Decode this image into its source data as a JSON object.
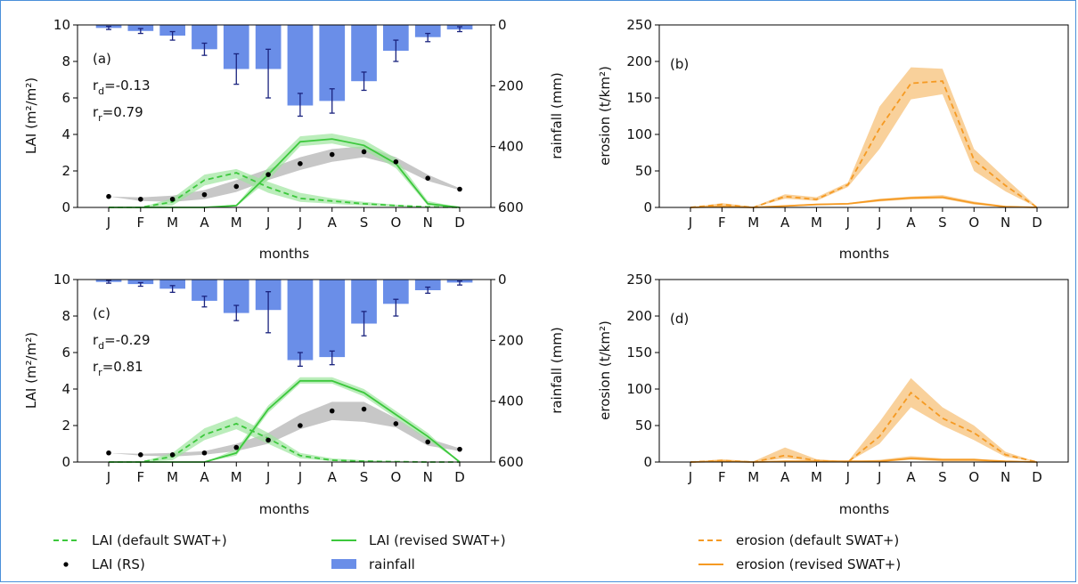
{
  "months": [
    "J",
    "F",
    "M",
    "A",
    "M",
    "J",
    "J",
    "A",
    "S",
    "O",
    "N",
    "D"
  ],
  "legend": {
    "lai_default": "LAI (default SWAT+)",
    "lai_revised": "LAI (revised SWAT+)",
    "lai_rs": "LAI (RS)",
    "rainfall": "rainfall",
    "erosion_default": "erosion (default SWAT+)",
    "erosion_revised": "erosion (revised SWAT+)"
  },
  "colors": {
    "rainfall": "#6a8ee8",
    "errorbar": "#1a237e",
    "lai_line": "#3cc83c",
    "lai_band": "#9ee69e",
    "rs_band": "#bdbdbd",
    "erosion": "#f59a23",
    "erosion_band": "#f8c98a"
  },
  "chart_data": [
    {
      "id": "a",
      "type": "line+bar",
      "panel_label": "(a)",
      "stat_d": {
        "base": "r",
        "sub": "d",
        "value": "=-0.13"
      },
      "stat_r": {
        "base": "r",
        "sub": "r",
        "value": "=0.79"
      },
      "xlabel": "months",
      "ylabel": "LAI (m²/m²)",
      "y2label": "rainfall (mm)",
      "ylim": [
        0,
        10
      ],
      "y2lim": [
        0,
        600
      ],
      "yticks": [
        "0",
        "2",
        "4",
        "6",
        "8",
        "10"
      ],
      "y2ticks": [
        "0",
        "200",
        "400",
        "600"
      ],
      "rainfall": [
        10,
        20,
        35,
        80,
        145,
        145,
        265,
        250,
        185,
        85,
        40,
        15
      ],
      "rainfall_err": [
        [
          5,
          15
        ],
        [
          12,
          28
        ],
        [
          22,
          50
        ],
        [
          60,
          100
        ],
        [
          95,
          195
        ],
        [
          80,
          240
        ],
        [
          225,
          300
        ],
        [
          210,
          290
        ],
        [
          155,
          215
        ],
        [
          50,
          120
        ],
        [
          28,
          55
        ],
        [
          6,
          22
        ]
      ],
      "lai_default": [
        0,
        0,
        0.3,
        1.5,
        1.9,
        1.1,
        0.5,
        0.35,
        0.2,
        0.1,
        0.03,
        0
      ],
      "lai_default_band": [
        [
          0,
          0
        ],
        [
          0,
          0
        ],
        [
          0.1,
          0.5
        ],
        [
          1.2,
          1.8
        ],
        [
          1.6,
          2.1
        ],
        [
          0.8,
          1.4
        ],
        [
          0.3,
          0.8
        ],
        [
          0.2,
          0.5
        ],
        [
          0.1,
          0.3
        ],
        [
          0.05,
          0.15
        ],
        [
          0.01,
          0.05
        ],
        [
          0,
          0
        ]
      ],
      "lai_revised": [
        0,
        0,
        0,
        0,
        0.1,
        1.8,
        3.6,
        3.75,
        3.4,
        2.4,
        0.2,
        0
      ],
      "lai_revised_band": [
        [
          0,
          0
        ],
        [
          0,
          0
        ],
        [
          0,
          0
        ],
        [
          0,
          0
        ],
        [
          0.05,
          0.15
        ],
        [
          1.5,
          2.2
        ],
        [
          3.35,
          3.9
        ],
        [
          3.5,
          4.05
        ],
        [
          3.15,
          3.7
        ],
        [
          2.15,
          2.7
        ],
        [
          0.1,
          0.35
        ],
        [
          0,
          0
        ]
      ],
      "lai_rs": [
        0.6,
        0.45,
        0.45,
        0.7,
        1.15,
        1.8,
        2.4,
        2.9,
        3.05,
        2.5,
        1.6,
        1.0
      ],
      "lai_rs_band": [
        [
          0.6,
          0.6
        ],
        [
          0.35,
          0.55
        ],
        [
          0.3,
          0.65
        ],
        [
          0.45,
          0.95
        ],
        [
          0.85,
          1.5
        ],
        [
          1.5,
          2.1
        ],
        [
          2.05,
          2.75
        ],
        [
          2.5,
          3.2
        ],
        [
          2.75,
          3.35
        ],
        [
          2.3,
          2.75
        ],
        [
          1.45,
          1.8
        ],
        [
          0.95,
          1.05
        ]
      ]
    },
    {
      "id": "b",
      "type": "line",
      "panel_label": "(b)",
      "xlabel": "months",
      "ylabel": "erosion (t/km²)",
      "ylim": [
        0,
        250
      ],
      "yticks": [
        "0",
        "50",
        "100",
        "150",
        "200",
        "250"
      ],
      "erosion_default": [
        0,
        4,
        0,
        15,
        11,
        31,
        108,
        170,
        173,
        65,
        30,
        0
      ],
      "erosion_default_band": [
        [
          0,
          0
        ],
        [
          2,
          6
        ],
        [
          0,
          1
        ],
        [
          12,
          18
        ],
        [
          9,
          14
        ],
        [
          28,
          34
        ],
        [
          80,
          138
        ],
        [
          148,
          192
        ],
        [
          155,
          190
        ],
        [
          50,
          80
        ],
        [
          22,
          40
        ],
        [
          0,
          1
        ]
      ],
      "erosion_revised": [
        0,
        1,
        0,
        2,
        4,
        5,
        10,
        13,
        14,
        6,
        1,
        0
      ],
      "erosion_revised_band": [
        [
          0,
          0
        ],
        [
          0,
          2
        ],
        [
          0,
          0
        ],
        [
          1,
          3
        ],
        [
          3,
          5
        ],
        [
          4,
          6
        ],
        [
          8,
          12
        ],
        [
          11,
          15
        ],
        [
          12,
          17
        ],
        [
          4,
          8
        ],
        [
          0,
          2
        ],
        [
          0,
          0
        ]
      ]
    },
    {
      "id": "c",
      "type": "line+bar",
      "panel_label": "(c)",
      "stat_d": {
        "base": "r",
        "sub": "d",
        "value": "=-0.29"
      },
      "stat_r": {
        "base": "r",
        "sub": "r",
        "value": "=0.81"
      },
      "xlabel": "months",
      "ylabel": "LAI (m²/m²)",
      "y2label": "rainfall (mm)",
      "ylim": [
        0,
        10
      ],
      "y2lim": [
        0,
        600
      ],
      "yticks": [
        "0",
        "2",
        "4",
        "6",
        "8",
        "10"
      ],
      "y2ticks": [
        "0",
        "200",
        "400",
        "600"
      ],
      "rainfall": [
        8,
        15,
        30,
        70,
        110,
        100,
        265,
        255,
        145,
        80,
        35,
        10
      ],
      "rainfall_err": [
        [
          3,
          12
        ],
        [
          10,
          22
        ],
        [
          20,
          42
        ],
        [
          55,
          90
        ],
        [
          85,
          135
        ],
        [
          40,
          175
        ],
        [
          240,
          285
        ],
        [
          235,
          280
        ],
        [
          105,
          185
        ],
        [
          65,
          120
        ],
        [
          25,
          45
        ],
        [
          5,
          18
        ]
      ],
      "lai_default": [
        0,
        0,
        0.3,
        1.5,
        2.1,
        1.3,
        0.35,
        0.1,
        0.05,
        0.02,
        0,
        0
      ],
      "lai_default_band": [
        [
          0,
          0
        ],
        [
          0,
          0
        ],
        [
          0.1,
          0.5
        ],
        [
          1.2,
          1.85
        ],
        [
          1.8,
          2.5
        ],
        [
          1.0,
          1.6
        ],
        [
          0.2,
          0.5
        ],
        [
          0.05,
          0.2
        ],
        [
          0.02,
          0.1
        ],
        [
          0,
          0.05
        ],
        [
          0,
          0
        ],
        [
          0,
          0
        ]
      ],
      "lai_revised": [
        0,
        0,
        0,
        0,
        0.5,
        2.9,
        4.45,
        4.45,
        3.8,
        2.6,
        1.4,
        0
      ],
      "lai_revised_band": [
        [
          0,
          0
        ],
        [
          0,
          0
        ],
        [
          0,
          0
        ],
        [
          0,
          0
        ],
        [
          0.35,
          0.7
        ],
        [
          2.7,
          3.1
        ],
        [
          4.3,
          4.65
        ],
        [
          4.3,
          4.65
        ],
        [
          3.6,
          4.0
        ],
        [
          2.4,
          2.8
        ],
        [
          1.2,
          1.6
        ],
        [
          0,
          0
        ]
      ],
      "lai_rs": [
        0.5,
        0.4,
        0.4,
        0.5,
        0.8,
        1.2,
        2.0,
        2.8,
        2.9,
        2.1,
        1.1,
        0.7
      ],
      "lai_rs_band": [
        [
          0.5,
          0.5
        ],
        [
          0.35,
          0.45
        ],
        [
          0.3,
          0.5
        ],
        [
          0.4,
          0.6
        ],
        [
          0.6,
          1.0
        ],
        [
          1.0,
          1.6
        ],
        [
          1.8,
          2.6
        ],
        [
          2.3,
          3.3
        ],
        [
          2.2,
          3.3
        ],
        [
          1.9,
          2.4
        ],
        [
          0.9,
          1.3
        ],
        [
          0.6,
          0.75
        ]
      ]
    },
    {
      "id": "d",
      "type": "line",
      "panel_label": "(d)",
      "xlabel": "months",
      "ylabel": "erosion (t/km²)",
      "ylim": [
        0,
        250
      ],
      "yticks": [
        "0",
        "50",
        "100",
        "150",
        "200",
        "250"
      ],
      "erosion_default": [
        0,
        2,
        0,
        9,
        2,
        0,
        35,
        95,
        60,
        40,
        10,
        0
      ],
      "erosion_default_band": [
        [
          0,
          0
        ],
        [
          1,
          4
        ],
        [
          0,
          1
        ],
        [
          5,
          20
        ],
        [
          1,
          4
        ],
        [
          0,
          1
        ],
        [
          25,
          55
        ],
        [
          75,
          115
        ],
        [
          50,
          75
        ],
        [
          30,
          50
        ],
        [
          7,
          14
        ],
        [
          0,
          0
        ]
      ],
      "erosion_revised": [
        0,
        1,
        0,
        1,
        1,
        1,
        1,
        5,
        3,
        3,
        1,
        0
      ],
      "erosion_revised_band": [
        [
          0,
          0
        ],
        [
          0,
          1
        ],
        [
          0,
          0
        ],
        [
          0,
          2
        ],
        [
          0,
          2
        ],
        [
          0,
          1
        ],
        [
          0,
          3
        ],
        [
          3,
          8
        ],
        [
          1,
          5
        ],
        [
          1,
          5
        ],
        [
          0,
          1
        ],
        [
          0,
          0
        ]
      ]
    }
  ]
}
